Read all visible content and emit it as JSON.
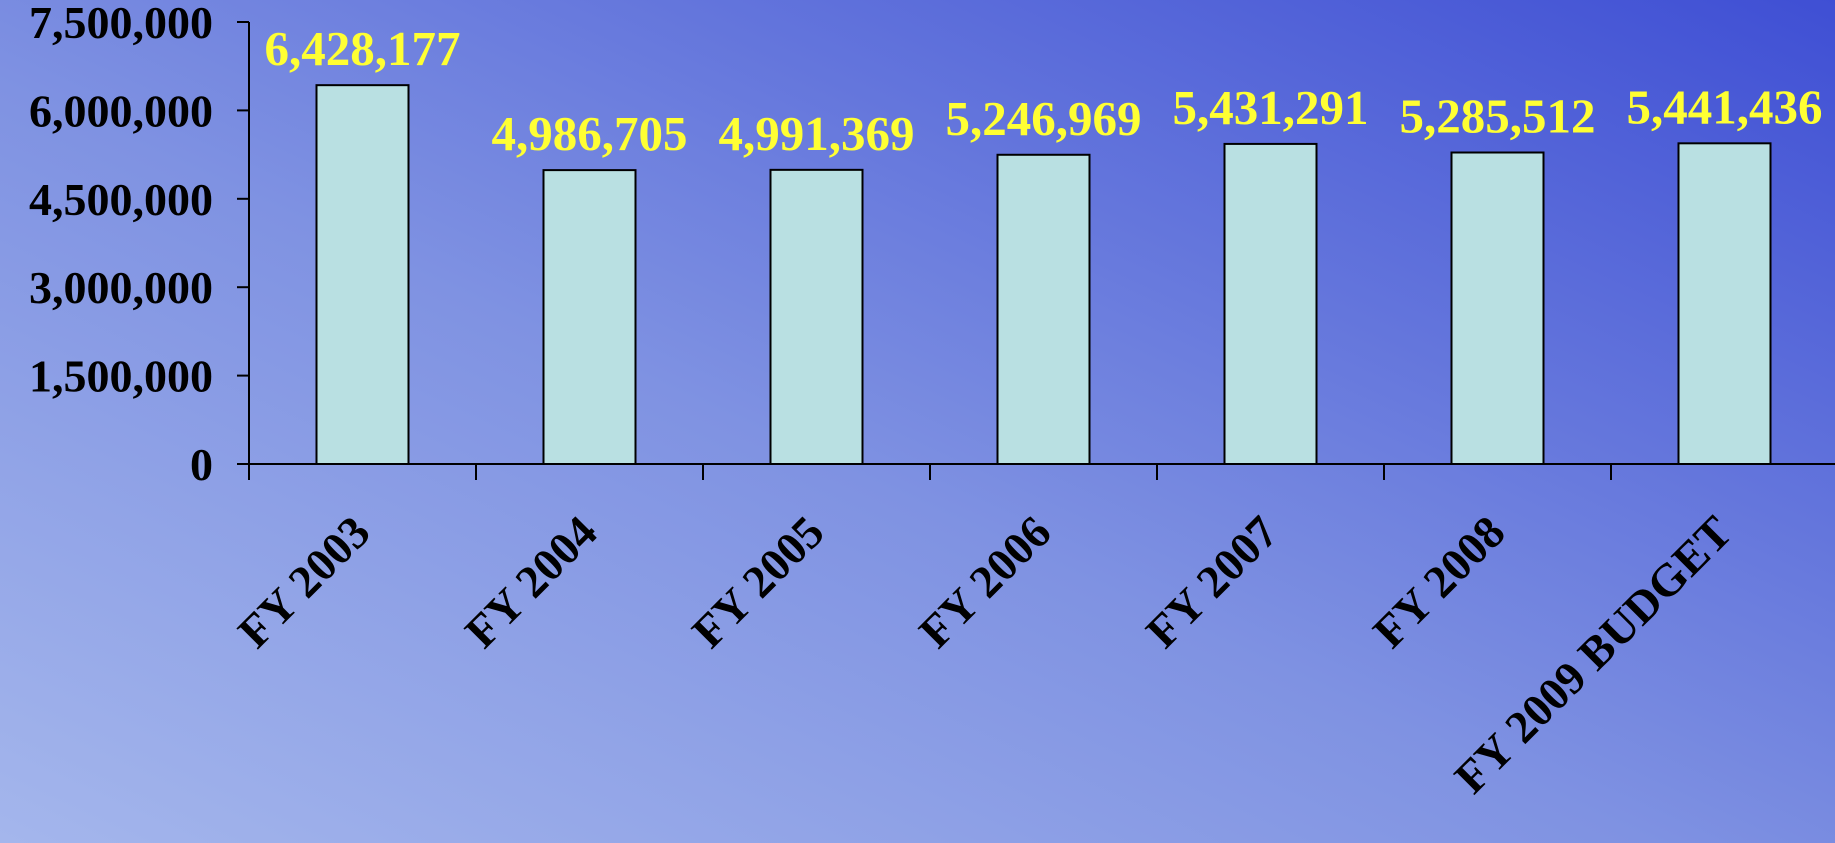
{
  "chart_data": {
    "type": "bar",
    "title": "",
    "xlabel": "",
    "ylabel": "",
    "categories": [
      "FY 2003",
      "FY 2004",
      "FY 2005",
      "FY 2006",
      "FY 2007",
      "FY 2008",
      "FY 2009 BUDGET"
    ],
    "values": [
      6428177,
      4986705,
      4991369,
      5246969,
      5431291,
      5285512,
      5441436
    ],
    "data_labels": [
      "6,428,177",
      "4,986,705",
      "4,991,369",
      "5,246,969",
      "5,431,291",
      "5,285,512",
      "5,441,436"
    ],
    "ylim": [
      0,
      7500000
    ],
    "yticks": [
      0,
      1500000,
      3000000,
      4500000,
      6000000,
      7500000
    ],
    "ytick_labels": [
      "0",
      "1,500,000",
      "3,000,000",
      "4,500,000",
      "6,000,000",
      "7,500,000"
    ],
    "grid": false,
    "legend": "none",
    "colors": {
      "bar_fill": "#b9e0e2",
      "bar_stroke": "#000000",
      "data_label": "#ffff33",
      "axis": "#000000"
    }
  }
}
